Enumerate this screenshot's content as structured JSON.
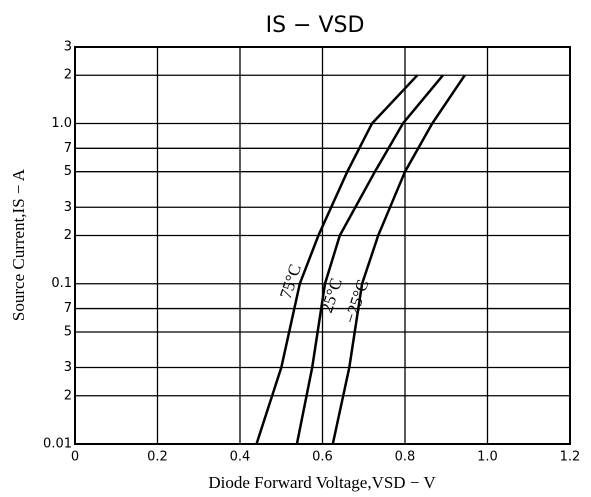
{
  "chart_data": {
    "type": "line",
    "title": "IS − VSD",
    "x_label": "Diode Forward Voltage,VSD − V",
    "y_label": "Source Current,IS − A",
    "xlim": [
      0,
      1.2
    ],
    "xticks": [
      0,
      0.2,
      0.4,
      0.6,
      0.8,
      {
        "value": 1,
        "label": "1.0"
      },
      1.2
    ],
    "ylim": [
      0.01,
      3
    ],
    "log_y": true,
    "grid": true,
    "yticks": [
      3,
      2,
      {
        "value": 1,
        "label": "1.0"
      },
      {
        "value": 0.7,
        "label": "7"
      },
      {
        "value": 0.5,
        "label": "5"
      },
      {
        "value": 0.3,
        "label": "3"
      },
      {
        "value": 0.2,
        "label": "2"
      },
      0.1,
      {
        "value": 0.07,
        "label": "7"
      },
      {
        "value": 0.05,
        "label": "5"
      },
      {
        "value": 0.03,
        "label": "3"
      },
      {
        "value": 0.02,
        "label": "2"
      },
      0.01
    ],
    "series": [
      {
        "name": "75°C",
        "color": "#000000",
        "x": [
          0.44,
          0.5,
          0.545,
          0.59,
          0.66,
          0.72,
          0.83
        ],
        "values": [
          0.01,
          0.03,
          0.1,
          0.2,
          0.5,
          1,
          2
        ]
      },
      {
        "name": "25°C",
        "color": "#000000",
        "x": [
          0.538,
          0.575,
          0.606,
          0.642,
          0.727,
          0.795,
          0.892
        ],
        "values": [
          0.01,
          0.03,
          0.1,
          0.2,
          0.5,
          1,
          2
        ]
      },
      {
        "name": "−25°C",
        "color": "#000000",
        "x": [
          0.625,
          0.665,
          0.696,
          0.735,
          0.8,
          0.866,
          0.945
        ],
        "values": [
          0.01,
          0.03,
          0.1,
          0.2,
          0.5,
          1,
          2
        ]
      }
    ]
  }
}
